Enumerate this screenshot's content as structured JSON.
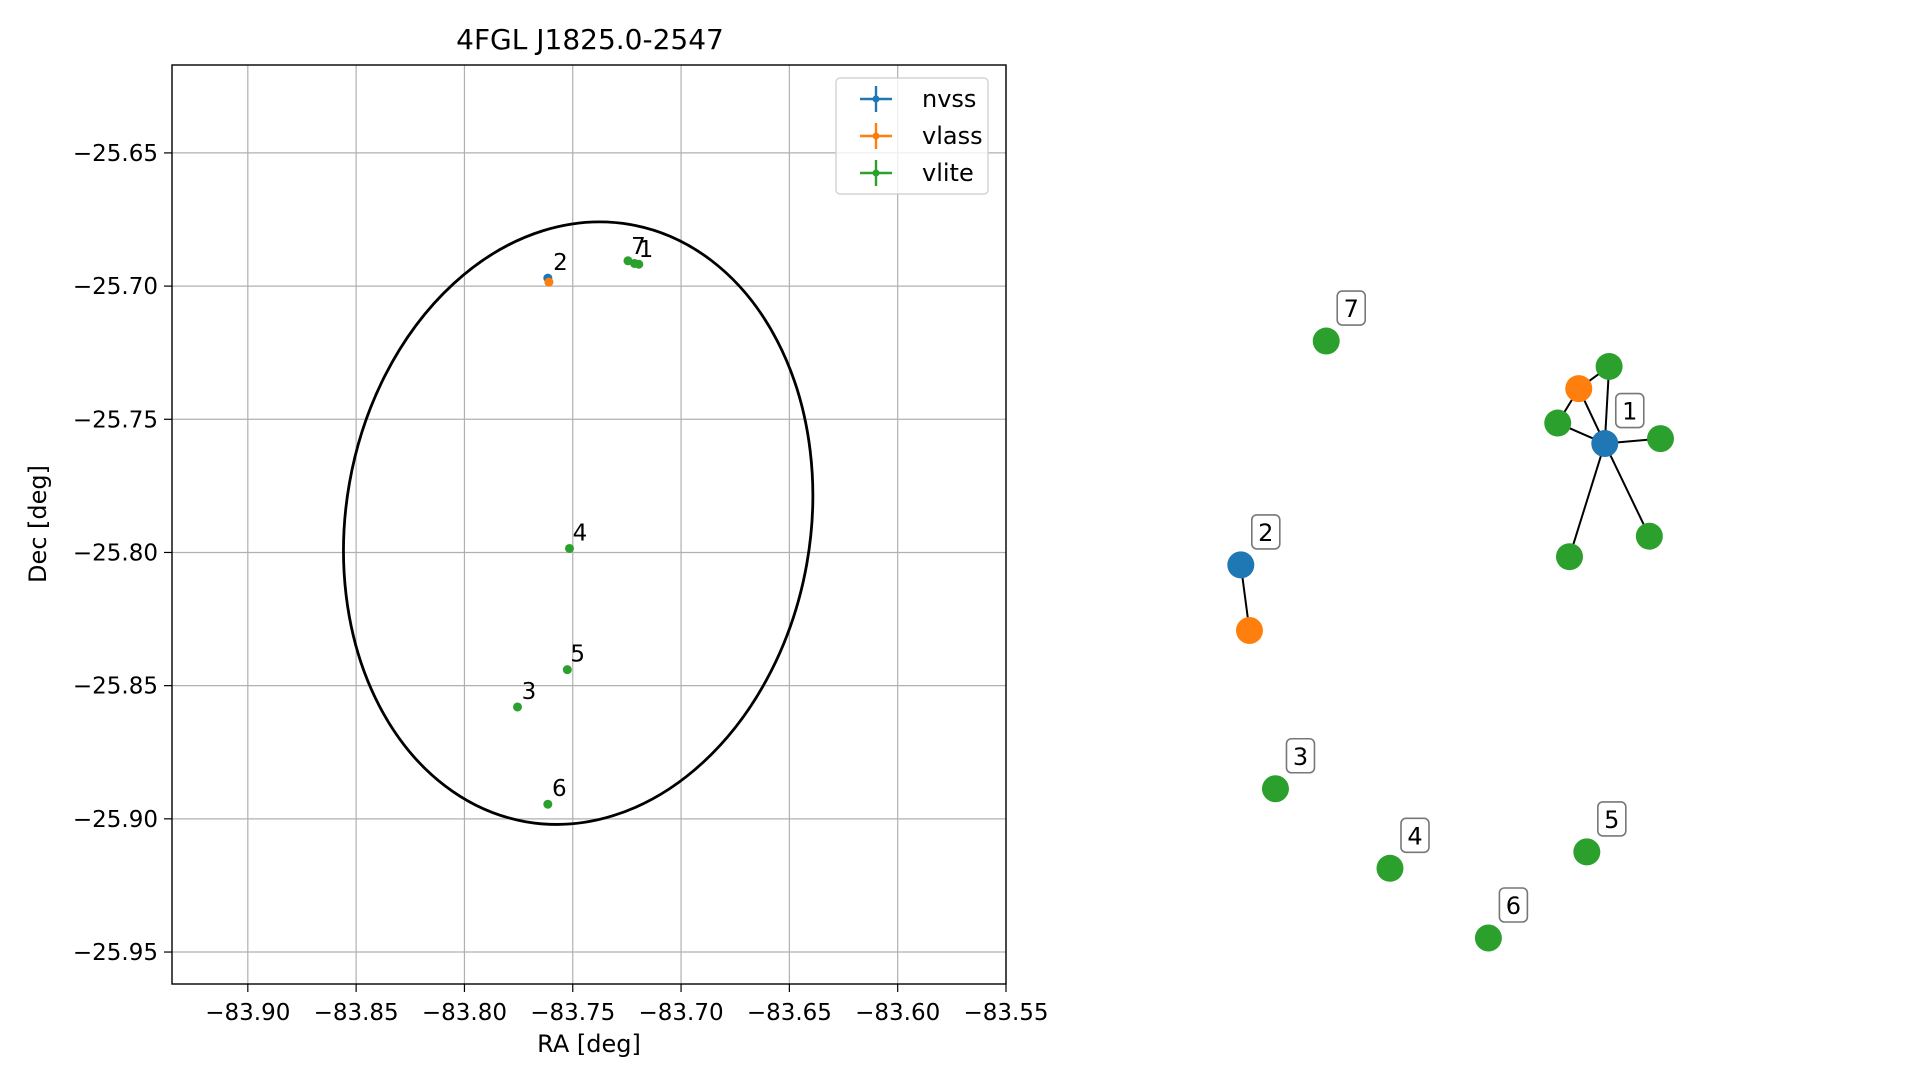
{
  "colors": {
    "nvss": "#1f77b4",
    "vlass": "#ff7f0e",
    "vlite": "#2ca02c",
    "grid": "#b0b0b0",
    "edge": "#000000"
  },
  "chart_data": [
    {
      "type": "scatter",
      "title": "4FGL J1825.0-2547",
      "xlabel": "RA [deg]",
      "ylabel": "Dec [deg]",
      "xlim": [
        -83.935,
        -83.55
      ],
      "ylim": [
        -25.962,
        -25.617
      ],
      "xticks": [
        -83.9,
        -83.85,
        -83.8,
        -83.75,
        -83.7,
        -83.65,
        -83.6,
        -83.55
      ],
      "xtick_labels": [
        "−83.90",
        "−83.85",
        "−83.80",
        "−83.75",
        "−83.70",
        "−83.65",
        "−83.60",
        "−83.55"
      ],
      "yticks": [
        -25.65,
        -25.7,
        -25.75,
        -25.8,
        -25.85,
        -25.9,
        -25.95
      ],
      "ytick_labels": [
        "−25.65",
        "−25.70",
        "−25.75",
        "−25.80",
        "−25.85",
        "−25.90",
        "−25.95"
      ],
      "grid": true,
      "legend_position": "top-right",
      "series": [
        {
          "name": "nvss",
          "color": "#1f77b4",
          "points": [
            {
              "x": -83.7615,
              "y": -25.697
            }
          ]
        },
        {
          "name": "vlass",
          "color": "#ff7f0e",
          "points": [
            {
              "x": -83.761,
              "y": -25.6985
            }
          ]
        },
        {
          "name": "vlite",
          "color": "#2ca02c",
          "points": [
            {
              "x": -83.7245,
              "y": -25.6905
            },
            {
              "x": -83.7215,
              "y": -25.6915
            },
            {
              "x": -83.7195,
              "y": -25.6918
            },
            {
              "x": -83.7515,
              "y": -25.7985
            },
            {
              "x": -83.7525,
              "y": -25.844
            },
            {
              "x": -83.7755,
              "y": -25.858
            },
            {
              "x": -83.7615,
              "y": -25.8945
            }
          ]
        }
      ],
      "point_labels": [
        {
          "text": "2",
          "x": -83.76,
          "y": -25.694
        },
        {
          "text": "7",
          "x": -83.724,
          "y": -25.688
        },
        {
          "text": "1",
          "x": -83.7205,
          "y": -25.689
        },
        {
          "text": "4",
          "x": -83.751,
          "y": -25.7955
        },
        {
          "text": "5",
          "x": -83.752,
          "y": -25.841
        },
        {
          "text": "3",
          "x": -83.7745,
          "y": -25.855
        },
        {
          "text": "6",
          "x": -83.7605,
          "y": -25.8915
        }
      ],
      "ellipse": {
        "center_x": -83.7475,
        "center_y": -25.789,
        "semi_axis_ra": 0.1072,
        "semi_axis_dec": 0.1138,
        "angle_deg": 10
      }
    },
    {
      "type": "network",
      "node_colors": {
        "nvss": "#1f77b4",
        "vlass": "#ff7f0e",
        "vlite": "#2ca02c"
      },
      "nodes": [
        {
          "id": "n1",
          "survey": "nvss",
          "x": 0.746,
          "y": 0.703,
          "label": "1"
        },
        {
          "id": "v1a",
          "survey": "vlass",
          "x": 0.704,
          "y": 0.77
        },
        {
          "id": "g1a",
          "survey": "vlite",
          "x": 0.753,
          "y": 0.797
        },
        {
          "id": "g1b",
          "survey": "vlite",
          "x": 0.67,
          "y": 0.728
        },
        {
          "id": "g1c",
          "survey": "vlite",
          "x": 0.836,
          "y": 0.709
        },
        {
          "id": "g1d",
          "survey": "vlite",
          "x": 0.689,
          "y": 0.565
        },
        {
          "id": "g1e",
          "survey": "vlite",
          "x": 0.818,
          "y": 0.59
        },
        {
          "id": "n2",
          "survey": "nvss",
          "x": 0.158,
          "y": 0.555,
          "label": "2"
        },
        {
          "id": "v2",
          "survey": "vlass",
          "x": 0.172,
          "y": 0.475
        },
        {
          "id": "g7",
          "survey": "vlite",
          "x": 0.296,
          "y": 0.828,
          "label": "7"
        },
        {
          "id": "g3",
          "survey": "vlite",
          "x": 0.214,
          "y": 0.282,
          "label": "3"
        },
        {
          "id": "g4",
          "survey": "vlite",
          "x": 0.399,
          "y": 0.185,
          "label": "4"
        },
        {
          "id": "g5",
          "survey": "vlite",
          "x": 0.717,
          "y": 0.205,
          "label": "5"
        },
        {
          "id": "g6",
          "survey": "vlite",
          "x": 0.558,
          "y": 0.1,
          "label": "6"
        }
      ],
      "edges": [
        [
          "n1",
          "v1a"
        ],
        [
          "n1",
          "g1a"
        ],
        [
          "n1",
          "g1b"
        ],
        [
          "n1",
          "g1c"
        ],
        [
          "n1",
          "g1d"
        ],
        [
          "n1",
          "g1e"
        ],
        [
          "v1a",
          "g1a"
        ],
        [
          "v1a",
          "g1b"
        ],
        [
          "n2",
          "v2"
        ]
      ]
    }
  ]
}
